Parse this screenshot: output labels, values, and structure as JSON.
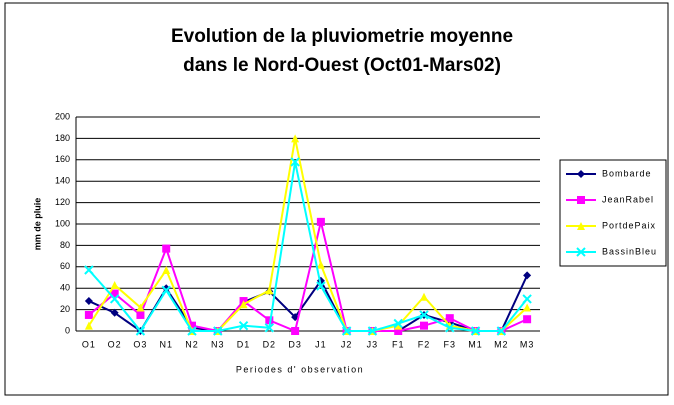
{
  "chart_data": {
    "type": "line",
    "title": [
      "Evolution de la pluviometrie moyenne",
      "dans le Nord-Ouest (Oct01-Mars02)"
    ],
    "xlabel": "Periodes d' observation",
    "ylabel": "mm de pluie",
    "categories": [
      "O1",
      "O2",
      "O3",
      "N1",
      "N2",
      "N3",
      "D1",
      "D2",
      "D3",
      "J1",
      "J2",
      "J3",
      "F1",
      "F2",
      "F3",
      "M1",
      "M2",
      "M3"
    ],
    "series": [
      {
        "name": "Bombarde",
        "color": "#000080",
        "marker": "diamond",
        "values": [
          28,
          17,
          0,
          40,
          3,
          0,
          27,
          37,
          13,
          47,
          0,
          0,
          0,
          15,
          8,
          0,
          0,
          52
        ]
      },
      {
        "name": "JeanRabel",
        "color": "#ff00ff",
        "marker": "square",
        "values": [
          15,
          35,
          15,
          77,
          5,
          0,
          28,
          10,
          0,
          102,
          0,
          0,
          0,
          5,
          12,
          0,
          0,
          11
        ]
      },
      {
        "name": "PortdePaix",
        "color": "#ffff00",
        "marker": "triangle",
        "values": [
          5,
          43,
          22,
          57,
          0,
          0,
          25,
          38,
          180,
          62,
          0,
          0,
          5,
          32,
          5,
          0,
          0,
          22
        ]
      },
      {
        "name": "BassinBleu",
        "color": "#00ffff",
        "marker": "x",
        "values": [
          57,
          30,
          0,
          38,
          0,
          0,
          5,
          3,
          158,
          42,
          0,
          0,
          7,
          15,
          3,
          0,
          0,
          30
        ]
      }
    ],
    "ylim": [
      0,
      200
    ],
    "yticks": [
      0,
      20,
      40,
      60,
      80,
      100,
      120,
      140,
      160,
      180,
      200
    ],
    "grid": true,
    "legend": "right"
  }
}
